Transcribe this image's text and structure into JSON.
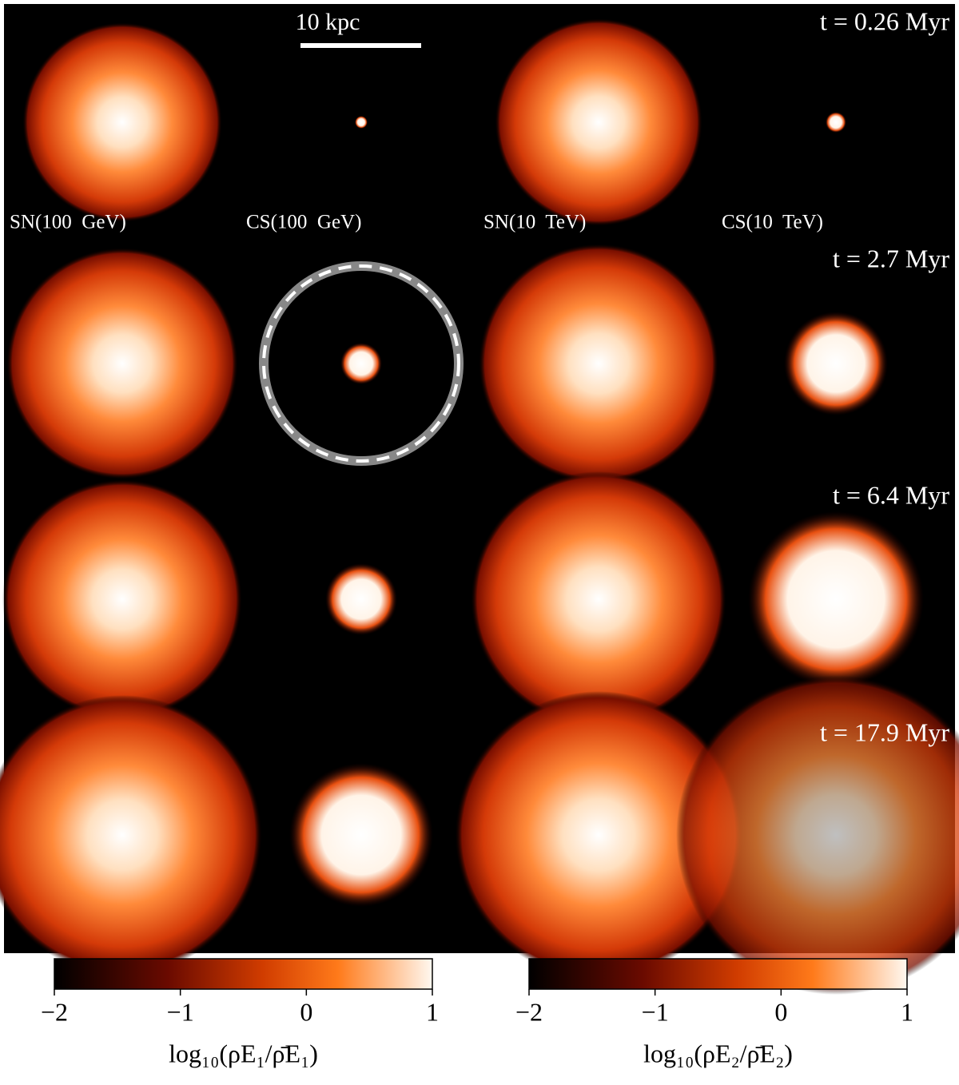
{
  "scale_bar": "10 kpc",
  "times": [
    "t = 0.26 Myr",
    "t = 2.7 Myr",
    "t = 6.4 Myr",
    "t = 17.9 Myr"
  ],
  "columns": [
    "SN(100  GeV)",
    "CS(100  GeV)",
    "SN(10  TeV)",
    "CS(10  TeV)"
  ],
  "colorbars": [
    {
      "label": "log₁₀(ρE₁/ρ̄E₁)",
      "lim": [
        -2,
        1
      ],
      "ticks": [
        {
          "value": -2,
          "label": "−2"
        },
        {
          "value": -1,
          "label": "−1"
        },
        0,
        1
      ]
    },
    {
      "label": "log₁₀(ρE₂/ρ̄E₂)",
      "lim": [
        -2,
        1
      ],
      "ticks": [
        {
          "value": -2,
          "label": "−2"
        },
        {
          "value": -1,
          "label": "−1"
        },
        0,
        1
      ]
    }
  ]
}
